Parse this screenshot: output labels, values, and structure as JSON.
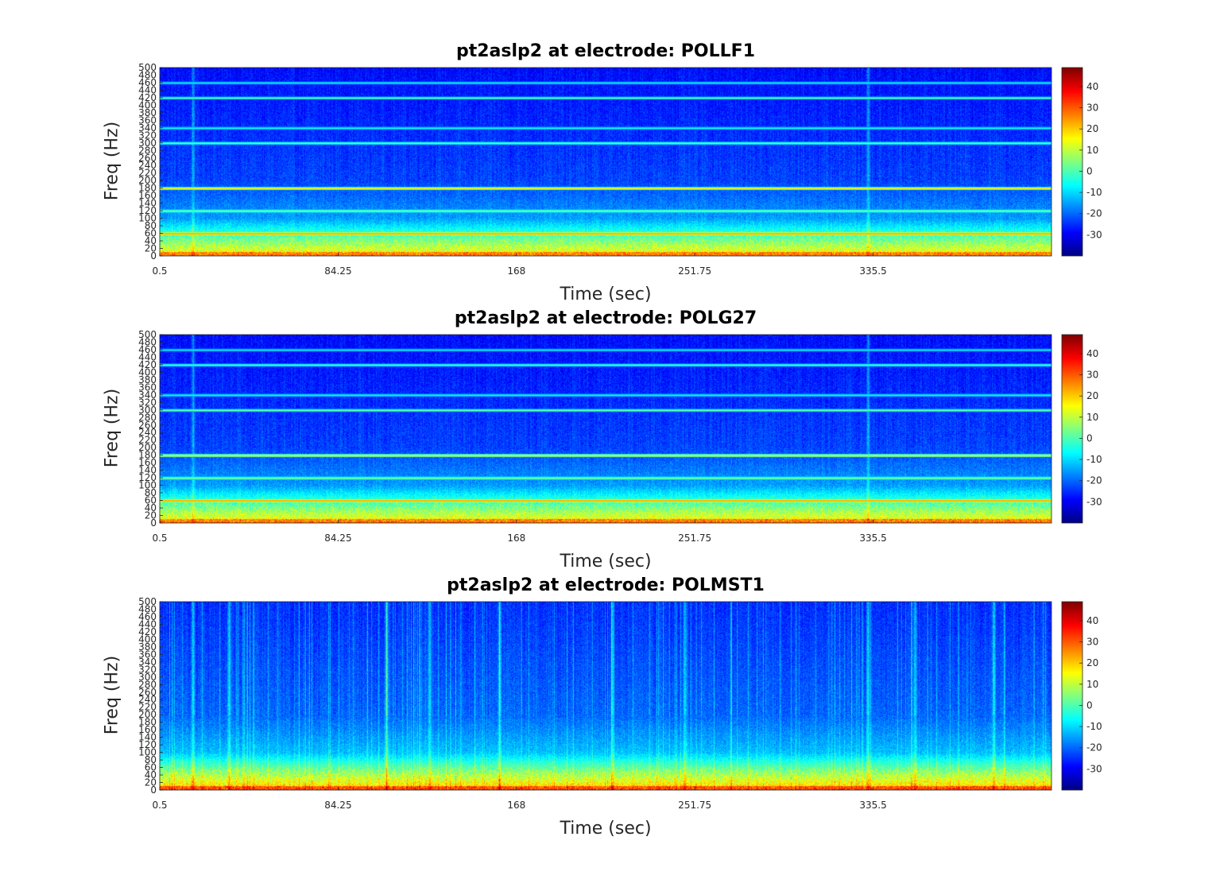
{
  "chart_data": [
    {
      "type": "heatmap",
      "title": "pt2aslp2 at electrode: POLLF1",
      "xlabel": "Time (sec)",
      "ylabel": "Freq (Hz)",
      "xlim": [
        0.5,
        419.25
      ],
      "ylim": [
        0,
        500
      ],
      "x_ticks": [
        "0.5",
        "84.25",
        "168",
        "251.75",
        "335.5"
      ],
      "x_tick_values": [
        0.5,
        84.25,
        168,
        251.75,
        335.5
      ],
      "y_ticks": [
        "0",
        "20",
        "40",
        "60",
        "80",
        "100",
        "120",
        "140",
        "160",
        "180",
        "200",
        "220",
        "240",
        "260",
        "280",
        "300",
        "320",
        "340",
        "360",
        "380",
        "400",
        "420",
        "440",
        "460",
        "480",
        "500"
      ],
      "colorbar": {
        "ticks": [
          "-30",
          "-20",
          "-10",
          "0",
          "10",
          "20",
          "30",
          "40"
        ],
        "tick_values": [
          -30,
          -20,
          -10,
          0,
          10,
          20,
          30,
          40
        ],
        "clim": [
          -40,
          49
        ],
        "colormap": "jet"
      },
      "line_noise_bands_hz": [
        60,
        120,
        180,
        300,
        340,
        420,
        460
      ],
      "background_db": -25,
      "low_freq_db": 18,
      "vertical_streaks_sec": [
        16,
        333
      ]
    },
    {
      "type": "heatmap",
      "title": "pt2aslp2 at electrode: POLG27",
      "xlabel": "Time (sec)",
      "ylabel": "Freq (Hz)",
      "xlim": [
        0.5,
        419.25
      ],
      "ylim": [
        0,
        500
      ],
      "x_ticks": [
        "0.5",
        "84.25",
        "168",
        "251.75",
        "335.5"
      ],
      "x_tick_values": [
        0.5,
        84.25,
        168,
        251.75,
        335.5
      ],
      "y_ticks": [
        "0",
        "20",
        "40",
        "60",
        "80",
        "100",
        "120",
        "140",
        "160",
        "180",
        "200",
        "220",
        "240",
        "260",
        "280",
        "300",
        "320",
        "340",
        "360",
        "380",
        "400",
        "420",
        "440",
        "460",
        "480",
        "500"
      ],
      "colorbar": {
        "ticks": [
          "-30",
          "-20",
          "-10",
          "0",
          "10",
          "20",
          "30",
          "40"
        ],
        "tick_values": [
          -30,
          -20,
          -10,
          0,
          10,
          20,
          30,
          40
        ],
        "clim": [
          -40,
          49
        ],
        "colormap": "jet"
      },
      "line_noise_bands_hz": [
        60,
        120,
        180,
        300,
        340,
        420,
        460
      ],
      "background_db": -25,
      "low_freq_db": 18,
      "vertical_streaks_sec": [
        16,
        333
      ]
    },
    {
      "type": "heatmap",
      "title": "pt2aslp2 at electrode: POLMST1",
      "xlabel": "Time (sec)",
      "ylabel": "Freq (Hz)",
      "xlim": [
        0.5,
        419.25
      ],
      "ylim": [
        0,
        500
      ],
      "x_ticks": [
        "0.5",
        "84.25",
        "168",
        "251.75",
        "335.5"
      ],
      "x_tick_values": [
        0.5,
        84.25,
        168,
        251.75,
        335.5
      ],
      "y_ticks": [
        "0",
        "20",
        "40",
        "60",
        "80",
        "100",
        "120",
        "140",
        "160",
        "180",
        "200",
        "220",
        "240",
        "260",
        "280",
        "300",
        "320",
        "340",
        "360",
        "380",
        "400",
        "420",
        "440",
        "460",
        "480",
        "500"
      ],
      "colorbar": {
        "ticks": [
          "-30",
          "-20",
          "-10",
          "0",
          "10",
          "20",
          "30",
          "40"
        ],
        "tick_values": [
          -30,
          -20,
          -10,
          0,
          10,
          20,
          30,
          40
        ],
        "clim": [
          -40,
          49
        ],
        "colormap": "jet"
      },
      "line_noise_bands_hz": [],
      "background_db": -22,
      "low_freq_db": 22,
      "vertical_streaks_sec": [
        16,
        33,
        107,
        127,
        160,
        213,
        247,
        333,
        355,
        392
      ]
    }
  ]
}
